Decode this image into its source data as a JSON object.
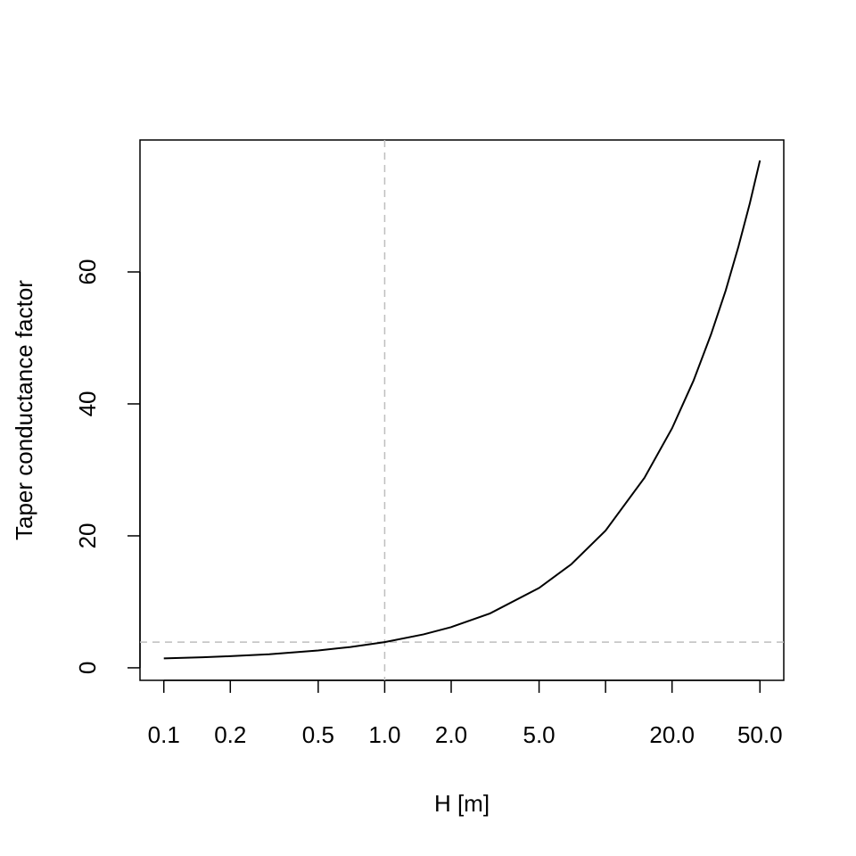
{
  "chart_data": {
    "type": "line",
    "x_label": "H [m]",
    "y_label": "Taper conductance factor",
    "x": [
      0.1,
      0.15,
      0.2,
      0.3,
      0.5,
      0.7,
      1,
      1.5,
      2,
      3,
      5,
      7,
      10,
      15,
      20,
      25,
      30,
      35,
      40,
      45,
      50
    ],
    "series": [
      {
        "color": "#000000",
        "values": [
          1.43,
          1.6,
          1.76,
          2.06,
          2.63,
          3.15,
          3.9,
          5.07,
          6.17,
          8.25,
          12.1,
          15.7,
          20.8,
          28.8,
          36.3,
          43.5,
          50.5,
          57.2,
          63.9,
          70.4,
          76.9
        ]
      }
    ],
    "xlog": true,
    "xlim": [
      0.078,
      64.1
    ],
    "ylim": [
      -1.9,
      80
    ],
    "xticks": [
      0.1,
      0.2,
      0.5,
      {
        "value": 1,
        "label": "1.0"
      },
      {
        "value": 2,
        "label": "2.0"
      },
      {
        "value": 5,
        "label": "5.0"
      },
      {
        "value": 10,
        "label": null
      },
      {
        "value": 20,
        "label": "20.0"
      },
      {
        "value": 50,
        "label": "50.0"
      }
    ],
    "yticks": [
      0,
      20,
      40,
      60
    ],
    "vline": 1,
    "hline": 3.9,
    "reference_color": "#bebebe"
  }
}
